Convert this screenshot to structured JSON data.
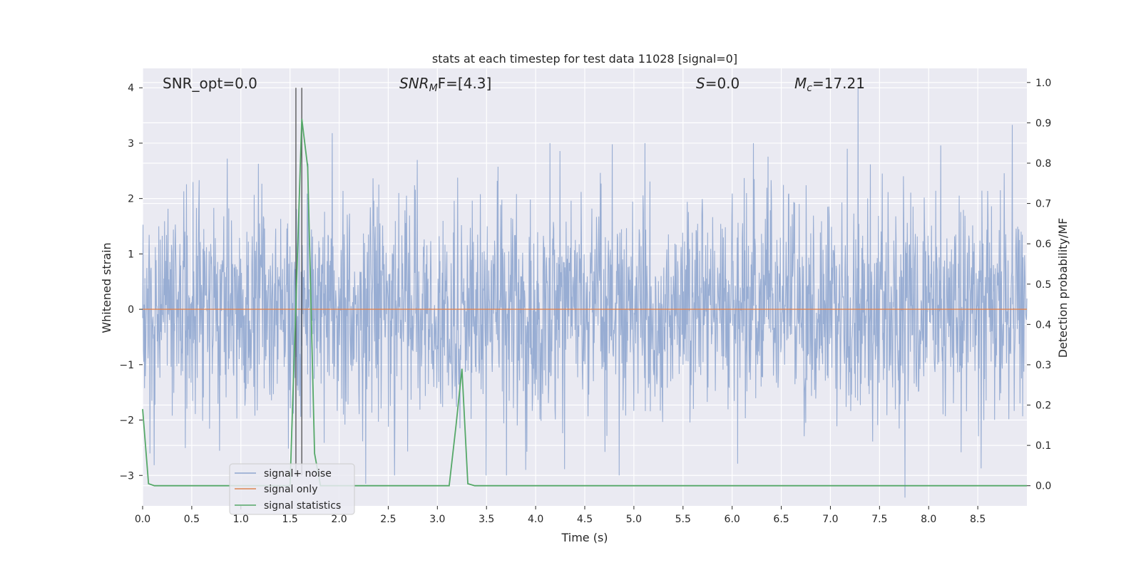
{
  "chart_data": {
    "type": "line",
    "title": "stats at each timestep for test data 11028 [signal=0]",
    "xlabel": "Time (s)",
    "ylabel": "Whitened strain",
    "ylabel_right": "Detection probability/MF",
    "xlim": [
      0,
      9.0
    ],
    "ylim": [
      -3.55,
      4.35
    ],
    "ylim_right": [
      -0.05,
      1.035
    ],
    "x_ticks": [
      0.0,
      0.5,
      1.0,
      1.5,
      2.0,
      2.5,
      3.0,
      3.5,
      4.0,
      4.5,
      5.0,
      5.5,
      6.0,
      6.5,
      7.0,
      7.5,
      8.0,
      8.5
    ],
    "x_tick_labels": [
      "0.0",
      "0.5",
      "1.0",
      "1.5",
      "2.0",
      "2.5",
      "3.0",
      "3.5",
      "4.0",
      "4.5",
      "5.0",
      "5.5",
      "6.0",
      "6.5",
      "7.0",
      "7.5",
      "8.0",
      "8.5"
    ],
    "y_ticks": [
      -3,
      -2,
      -1,
      0,
      1,
      2,
      3,
      4
    ],
    "y_tick_labels": [
      "−3",
      "−2",
      "−1",
      "0",
      "1",
      "2",
      "3",
      "4"
    ],
    "y_ticks_right": [
      0.0,
      0.1,
      0.2,
      0.3,
      0.4,
      0.5,
      0.6,
      0.7,
      0.8,
      0.9,
      1.0
    ],
    "y_tick_labels_right": [
      "0.0",
      "0.1",
      "0.2",
      "0.3",
      "0.4",
      "0.5",
      "0.6",
      "0.7",
      "0.8",
      "0.9",
      "1.0"
    ],
    "grid": true,
    "legend_position": "lower-left",
    "annotations": {
      "snr_opt": "SNR_opt=0.0",
      "snr_mf_main": "SNR",
      "snr_mf_sub": "M",
      "snr_mf_rest": "F=[4.3]",
      "s_main": "S",
      "s_rest": "=0.0",
      "mc_main": "M",
      "mc_sub": "c",
      "mc_rest": "=17.21"
    },
    "vertical_lines_x": [
      1.56,
      1.62
    ],
    "series": [
      {
        "name": "signal+ noise",
        "color": "#8fa6cf",
        "description_style": "dense noise, amplitude ~ +/-1.7 with spikes",
        "noise_sigma": 0.95,
        "n_points": 2300,
        "peaks": [
          {
            "x": 1.93,
            "y": 3.18
          },
          {
            "x": 7.28,
            "y": 4.0
          },
          {
            "x": 8.85,
            "y": 3.33
          },
          {
            "x": 4.78,
            "y": 2.98
          },
          {
            "x": 7.17,
            "y": 2.9
          },
          {
            "x": 7.76,
            "y": -3.4
          },
          {
            "x": 3.9,
            "y": -2.9
          },
          {
            "x": 2.27,
            "y": -3.15
          }
        ]
      },
      {
        "name": "signal only",
        "color": "#dd8452",
        "x": [
          0.0,
          9.0
        ],
        "y": [
          0.0,
          0.0
        ]
      },
      {
        "name": "signal statistics",
        "color": "#55a868",
        "axis": "right",
        "x": [
          0.0,
          0.06,
          0.12,
          0.25,
          1.5,
          1.56,
          1.62,
          1.68,
          1.75,
          1.81,
          3.12,
          3.19,
          3.25,
          3.31,
          3.38,
          9.0
        ],
        "y": [
          0.19,
          0.005,
          0.0,
          0.0,
          0.0,
          0.45,
          0.91,
          0.79,
          0.08,
          0.0,
          0.0,
          0.15,
          0.29,
          0.005,
          0.0,
          0.0
        ]
      }
    ]
  }
}
